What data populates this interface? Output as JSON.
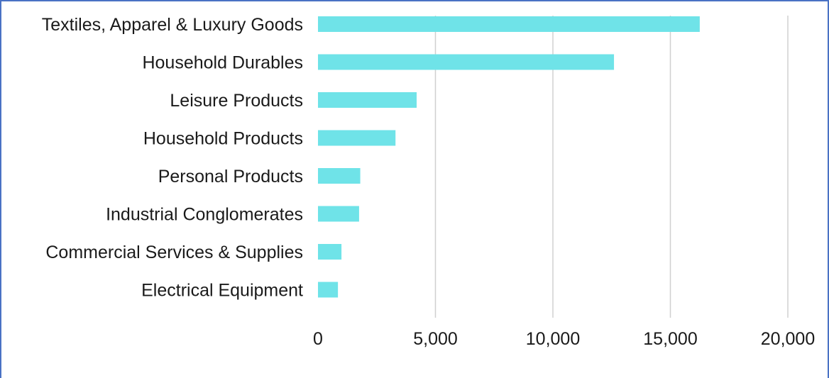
{
  "chart_data": {
    "type": "bar",
    "orientation": "horizontal",
    "title": "",
    "xlabel": "",
    "ylabel": "",
    "categories": [
      "Textiles, Apparel & Luxury Goods",
      "Household Durables",
      "Leisure Products",
      "Household Products",
      "Personal Products",
      "Industrial Conglomerates",
      "Commercial Services & Supplies",
      "Electrical Equipment"
    ],
    "values": [
      16250,
      12600,
      4200,
      3300,
      1800,
      1750,
      1000,
      850
    ],
    "xlim": [
      0,
      20000
    ],
    "x_ticks": [
      0,
      5000,
      10000,
      15000,
      20000
    ],
    "x_tick_labels": [
      "0",
      "5,000",
      "10,000",
      "15,000",
      "20,000"
    ],
    "grid": "vertical",
    "bar_color": "#6fe3e8",
    "grid_color": "#d0d0d0"
  }
}
